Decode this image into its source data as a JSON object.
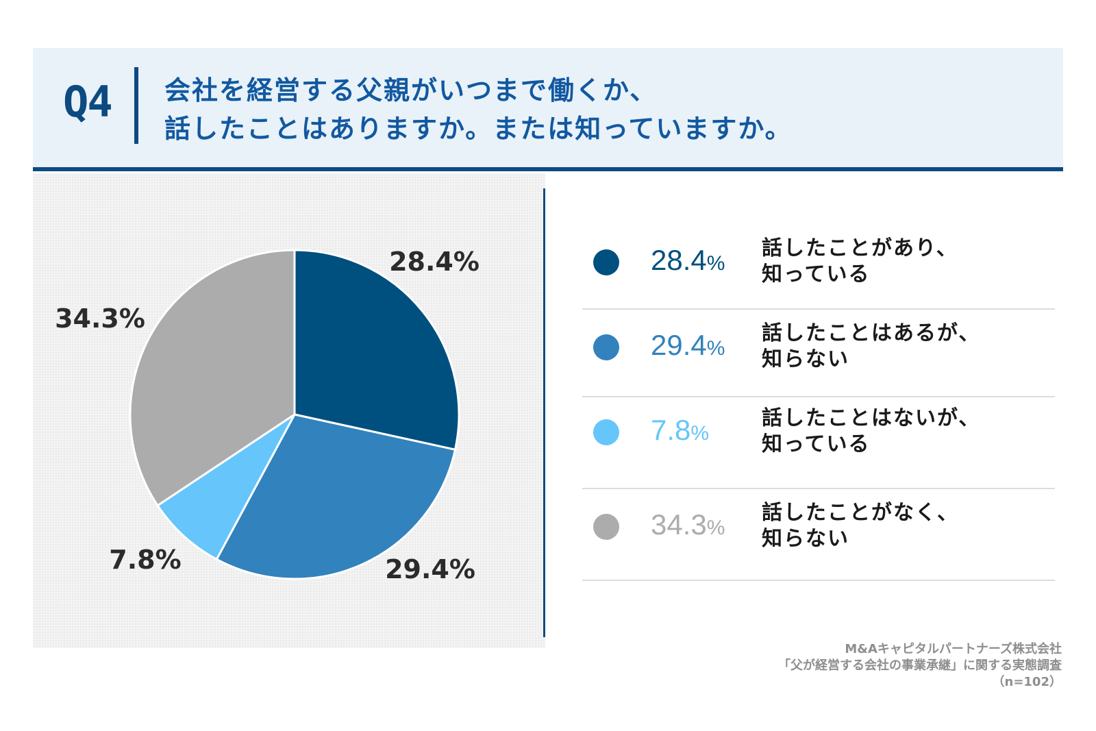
{
  "header": {
    "question_number": "Q4",
    "title_line1": "会社を経営する父親がいつまで働くか、",
    "title_line2": "話したことはありますか。または知っていますか。"
  },
  "chart_data": {
    "type": "pie",
    "title": "会社を経営する父親がいつまで働くか、話したことはありますか。または知っていますか。",
    "unit": "%",
    "slices": [
      {
        "label": "話したことがあり、知っている",
        "value": 28.4,
        "value_label": "28.4%",
        "color": "#00507f"
      },
      {
        "label": "話したことはあるが、知らない",
        "value": 29.4,
        "value_label": "29.4%",
        "color": "#3282bd"
      },
      {
        "label": "話したことはないが、知っている",
        "value": 7.8,
        "value_label": "7.8%",
        "color": "#66c5fb"
      },
      {
        "label": "話したことがなく、知らない",
        "value": 34.3,
        "value_label": "34.3%",
        "color": "#acacac"
      }
    ]
  },
  "legend": [
    {
      "pct": "28.4",
      "unit": "%",
      "line1": "話したことがあり、",
      "line2": "知っている",
      "color": "#00507f"
    },
    {
      "pct": "29.4",
      "unit": "%",
      "line1": "話したことはあるが、",
      "line2": "知らない",
      "color": "#3282bd"
    },
    {
      "pct": "7.8",
      "unit": "%",
      "line1": "話したことはないが、",
      "line2": "知っている",
      "color": "#66c5fb"
    },
    {
      "pct": "34.3",
      "unit": "%",
      "line1": "話したことがなく、",
      "line2": "知らない",
      "color": "#acacac"
    }
  ],
  "source": {
    "line1": "M&Aキャピタルパートナーズ株式会社",
    "line2": "「父が経営する会社の事業承継」に関する実態調査",
    "line3": "（n=102）"
  }
}
